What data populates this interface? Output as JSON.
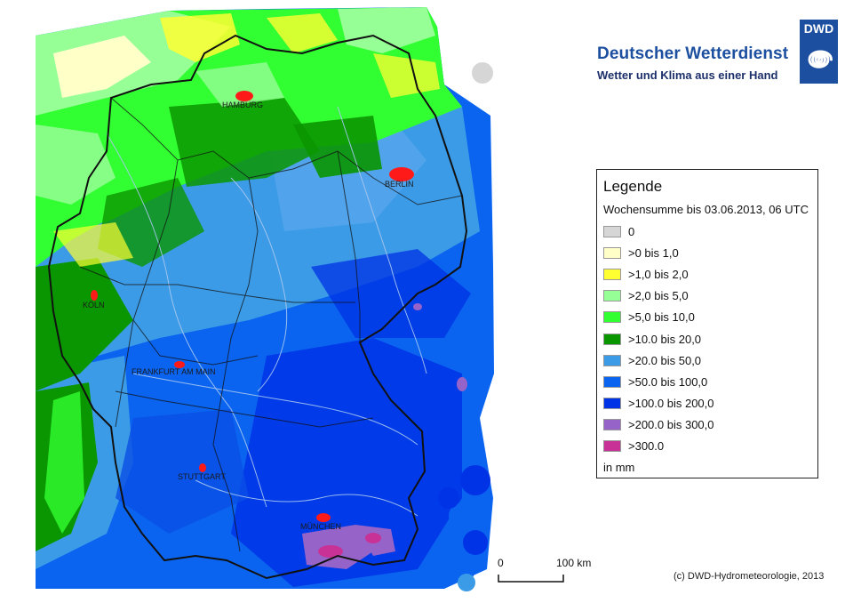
{
  "header": {
    "title": "Deutscher Wetterdienst",
    "tagline": "Wetter und Klima aus einer Hand",
    "logo_text": "DWD"
  },
  "cities": [
    {
      "name": "HAMBURG",
      "key": "hamburg"
    },
    {
      "name": "BERLIN",
      "key": "berlin"
    },
    {
      "name": "KÖLN",
      "key": "koeln"
    },
    {
      "name": "FRANKFURT AM MAIN",
      "key": "frankfurt"
    },
    {
      "name": "STUTTGART",
      "key": "stuttgart"
    },
    {
      "name": "MÜNCHEN",
      "key": "muenchen"
    }
  ],
  "legend": {
    "title": "Legende",
    "subtitle": "Wochensumme bis 03.06.2013, 06 UTC",
    "unit": "in mm",
    "items": [
      {
        "label": "0",
        "color": "#d6d6d6"
      },
      {
        "label": ">0 bis 1,0",
        "color": "#ffffc8"
      },
      {
        "label": ">1,0 bis 2,0",
        "color": "#ffff32"
      },
      {
        "label": ">2,0 bis 5,0",
        "color": "#96ff96"
      },
      {
        "label": ">5,0 bis 10,0",
        "color": "#32ff32"
      },
      {
        "label": ">10.0 bis 20,0",
        "color": "#0a9600"
      },
      {
        "label": ">20.0 bis 50,0",
        "color": "#3c9be6"
      },
      {
        "label": ">50.0 bis 100,0",
        "color": "#0a64f0"
      },
      {
        "label": ">100.0 bis 200,0",
        "color": "#0032e6"
      },
      {
        "label": ">200.0 bis 300,0",
        "color": "#9664c8"
      },
      {
        "label": ">300.0",
        "color": "#c83296"
      }
    ]
  },
  "scale": {
    "start_label": "0",
    "end_label": "100 km"
  },
  "copyright": "(c) DWD-Hydrometeorologie, 2013"
}
